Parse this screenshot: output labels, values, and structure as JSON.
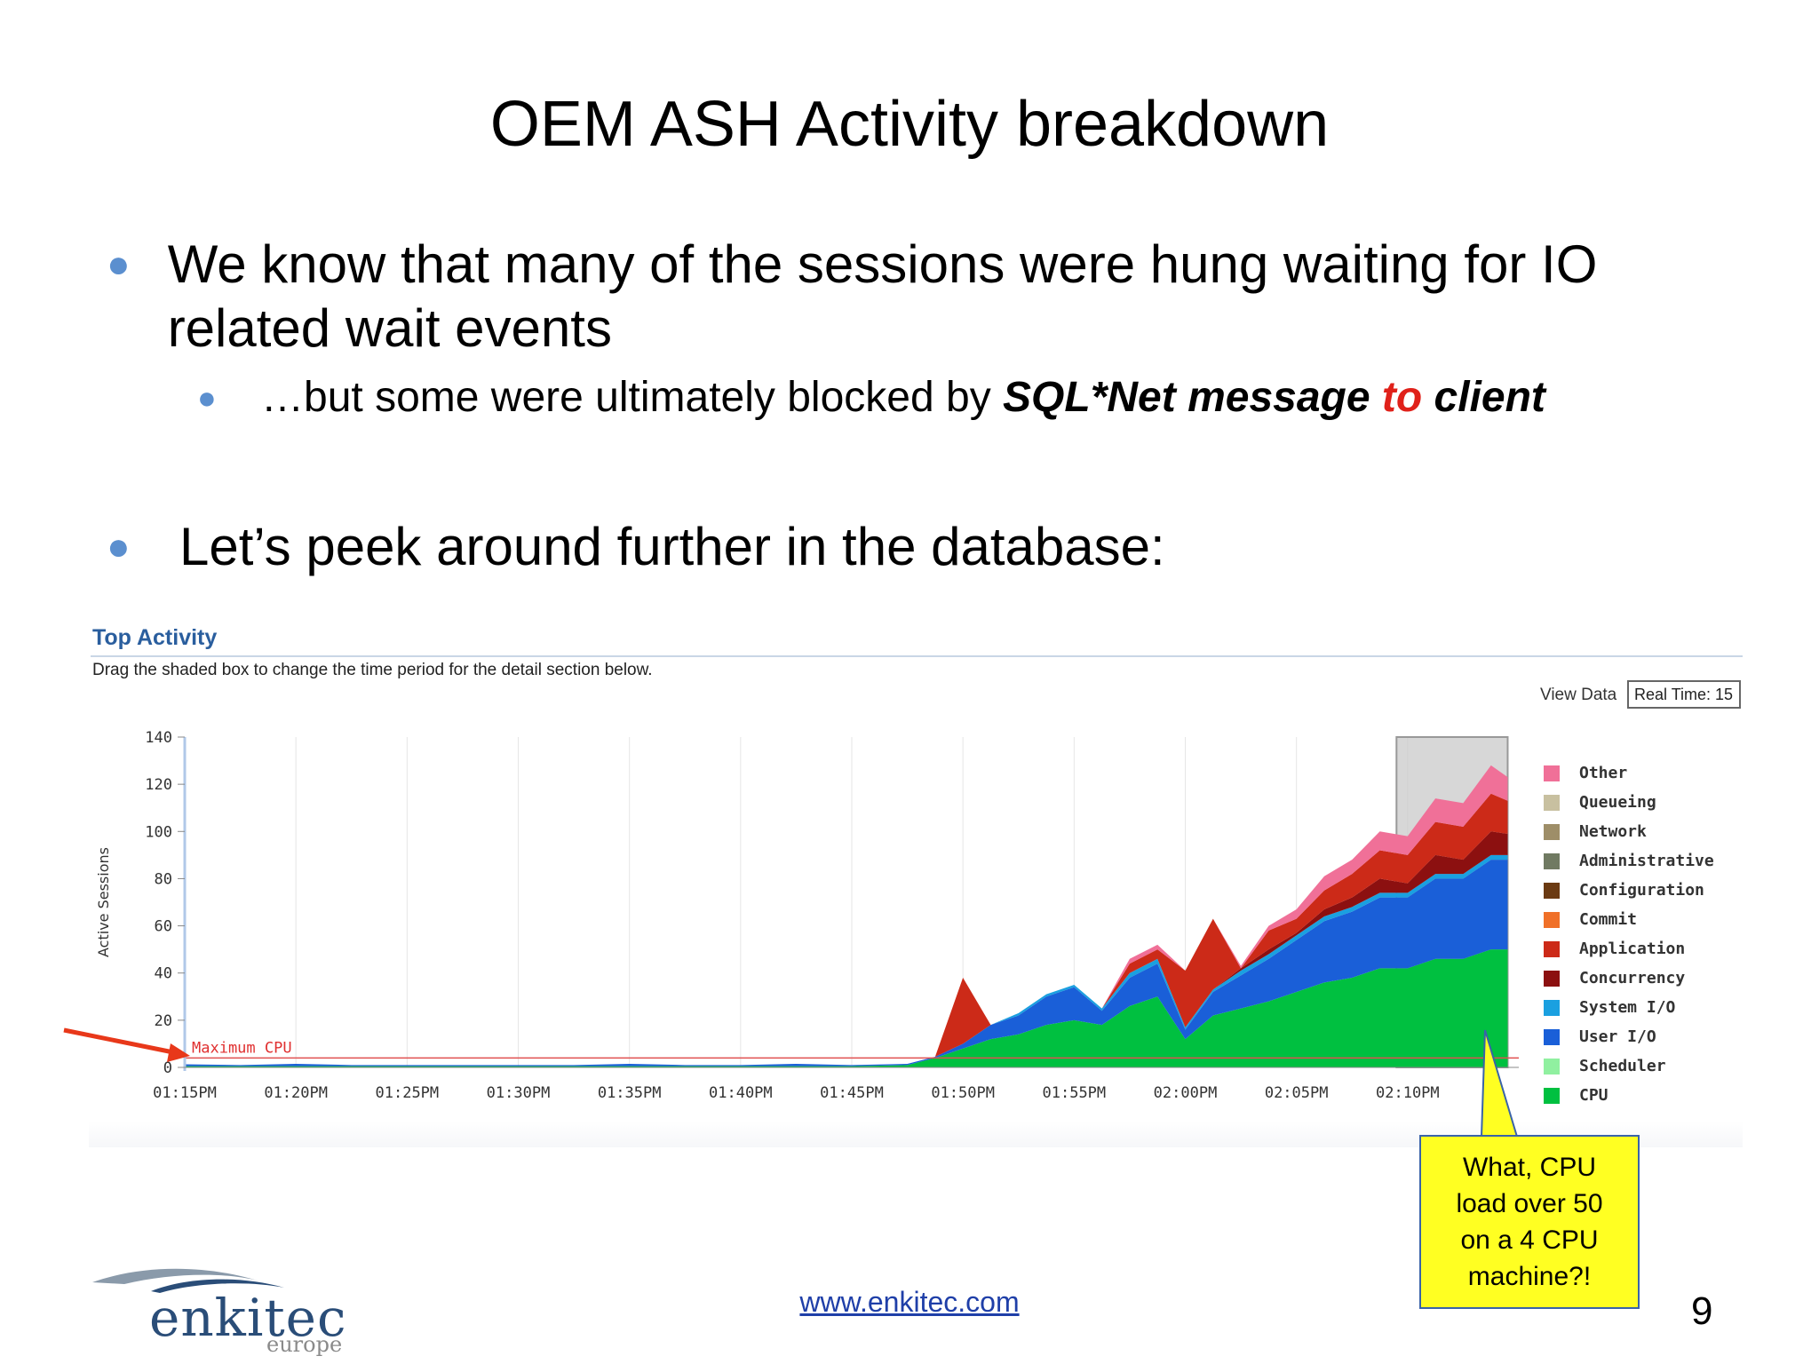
{
  "slide": {
    "title": "OEM ASH Activity breakdown",
    "bullet1": "We know that many of the sessions were hung waiting for IO related wait events",
    "bullet2_prefix": "…but some were ultimately blocked by ",
    "bullet2_em1": "SQL*Net message ",
    "bullet2_em2": "to",
    "bullet2_em3": " client",
    "bullet3": "Let’s peek around further in the database:",
    "callout": "What, CPU\nload over 50\non a 4 CPU\nmachine?!",
    "footer_link": "www.enkitec.com",
    "page_number": "9",
    "logo_word": "enkitec",
    "logo_sub": "europe"
  },
  "panel": {
    "title": "Top Activity",
    "subtitle": "Drag the shaded box to change the time period for the detail section below.",
    "view_data_label": "View Data",
    "view_data_value": "Real Time: 15"
  },
  "colors": {
    "accent_blue": "#2a5e9e",
    "bullet": "#5b8fcf",
    "highlight_red": "#e0211a",
    "callout_yellow": "#ffff22",
    "arrow": "#e8381a"
  },
  "chart_data": {
    "type": "area",
    "stacked": true,
    "ylabel": "Active Sessions",
    "ylim": [
      0,
      140
    ],
    "yticks": [
      0,
      20,
      40,
      60,
      80,
      100,
      120,
      140
    ],
    "xlim": [
      0,
      24
    ],
    "xticks": [
      {
        "x": 0,
        "label": "01:15PM"
      },
      {
        "x": 2,
        "label": "01:20PM"
      },
      {
        "x": 4,
        "label": "01:25PM"
      },
      {
        "x": 6,
        "label": "01:30PM"
      },
      {
        "x": 8,
        "label": "01:35PM"
      },
      {
        "x": 10,
        "label": "01:40PM"
      },
      {
        "x": 12,
        "label": "01:45PM"
      },
      {
        "x": 14,
        "label": "01:50PM"
      },
      {
        "x": 16,
        "label": "01:55PM"
      },
      {
        "x": 18,
        "label": "02:00PM"
      },
      {
        "x": 20,
        "label": "02:05PM"
      },
      {
        "x": 22,
        "label": "02:10PM"
      }
    ],
    "max_cpu_label": "Maximum CPU",
    "max_cpu_value": 4,
    "selection_range": [
      21.8,
      23.8
    ],
    "x": [
      0,
      1,
      2,
      3,
      4,
      5,
      6,
      7,
      8,
      9,
      10,
      11,
      12,
      13,
      13.5,
      14,
      14.5,
      15,
      15.5,
      16,
      16.5,
      17,
      17.5,
      18,
      18.5,
      19,
      19.5,
      20,
      20.5,
      21,
      21.5,
      22,
      22.5,
      23,
      23.5,
      23.8
    ],
    "series": [
      {
        "name": "CPU",
        "color": "#00c040",
        "values": [
          0.5,
          0.5,
          0.5,
          0.5,
          0.5,
          0.5,
          0.5,
          0.5,
          0.5,
          0.5,
          0.5,
          0.5,
          0.5,
          1,
          4,
          8,
          12,
          14,
          18,
          20,
          18,
          26,
          30,
          12,
          22,
          25,
          28,
          32,
          36,
          38,
          42,
          42,
          46,
          46,
          50,
          50
        ]
      },
      {
        "name": "Scheduler",
        "color": "#90f0a0",
        "values": [
          0,
          0,
          0,
          0,
          0,
          0,
          0,
          0,
          0,
          0,
          0,
          0,
          0,
          0,
          0,
          0,
          0,
          0,
          0,
          0,
          0,
          0,
          0,
          0,
          0,
          0,
          0,
          0,
          0,
          0,
          0,
          0,
          0,
          0,
          0,
          0
        ]
      },
      {
        "name": "User I/O",
        "color": "#1a5fd8",
        "values": [
          0.8,
          0.5,
          1,
          0.5,
          0.5,
          0.5,
          0.5,
          0.5,
          1,
          0.5,
          0.5,
          1,
          0.5,
          0.5,
          0.5,
          2,
          6,
          8,
          12,
          14,
          6,
          12,
          14,
          4,
          10,
          14,
          18,
          22,
          26,
          28,
          30,
          30,
          34,
          34,
          38,
          38
        ]
      },
      {
        "name": "System I/O",
        "color": "#1aa0e0",
        "values": [
          0,
          0,
          0,
          0,
          0,
          0,
          0,
          0,
          0,
          0,
          0,
          0,
          0,
          0,
          0,
          0,
          0,
          1,
          1,
          1,
          1,
          2,
          2,
          1,
          1,
          2,
          2,
          2,
          2,
          2,
          2,
          2,
          2,
          2,
          2,
          2
        ]
      },
      {
        "name": "Concurrency",
        "color": "#8c1010",
        "values": [
          0,
          0,
          0,
          0,
          0,
          0,
          0,
          0,
          0,
          0,
          0,
          0,
          0,
          0,
          0,
          0,
          0,
          0,
          0,
          0,
          0,
          0,
          0,
          0,
          0,
          1,
          2,
          1,
          3,
          4,
          6,
          4,
          8,
          6,
          10,
          9
        ]
      },
      {
        "name": "Application",
        "color": "#cc2a18",
        "values": [
          0,
          0,
          0,
          0,
          0,
          0,
          0,
          0,
          0,
          0,
          0,
          0,
          0,
          0,
          0,
          28,
          0,
          0,
          0,
          0,
          0,
          4,
          4,
          24,
          30,
          0,
          8,
          6,
          8,
          10,
          12,
          12,
          14,
          14,
          16,
          14
        ]
      },
      {
        "name": "Commit",
        "color": "#f07028",
        "values": [
          0,
          0,
          0,
          0,
          0,
          0,
          0,
          0,
          0,
          0,
          0,
          0,
          0,
          0,
          0,
          0,
          0,
          0,
          0,
          0,
          0,
          0,
          0,
          0,
          0,
          0,
          0,
          0,
          0,
          0,
          0,
          0,
          0,
          0,
          0,
          0
        ]
      },
      {
        "name": "Configuration",
        "color": "#6b3a12",
        "values": [
          0,
          0,
          0,
          0,
          0,
          0,
          0,
          0,
          0,
          0,
          0,
          0,
          0,
          0,
          0,
          0,
          0,
          0,
          0,
          0,
          0,
          0,
          0,
          0,
          0,
          0,
          0,
          0,
          0,
          0,
          0,
          0,
          0,
          0,
          0,
          0
        ]
      },
      {
        "name": "Administrative",
        "color": "#707a62",
        "values": [
          0,
          0,
          0,
          0,
          0,
          0,
          0,
          0,
          0,
          0,
          0,
          0,
          0,
          0,
          0,
          0,
          0,
          0,
          0,
          0,
          0,
          0,
          0,
          0,
          0,
          0,
          0,
          0,
          0,
          0,
          0,
          0,
          0,
          0,
          0,
          0
        ]
      },
      {
        "name": "Network",
        "color": "#9e8e68",
        "values": [
          0,
          0,
          0,
          0,
          0,
          0,
          0,
          0,
          0,
          0,
          0,
          0,
          0,
          0,
          0,
          0,
          0,
          0,
          0,
          0,
          0,
          0,
          0,
          0,
          0,
          0,
          0,
          0,
          0,
          0,
          0,
          0,
          0,
          0,
          0,
          0
        ]
      },
      {
        "name": "Queueing",
        "color": "#c8c0a0",
        "values": [
          0,
          0,
          0,
          0,
          0,
          0,
          0,
          0,
          0,
          0,
          0,
          0,
          0,
          0,
          0,
          0,
          0,
          0,
          0,
          0,
          0,
          0,
          0,
          0,
          0,
          0,
          0,
          0,
          0,
          0,
          0,
          0,
          0,
          0,
          0,
          0
        ]
      },
      {
        "name": "Other",
        "color": "#f07098",
        "values": [
          0,
          0,
          0,
          0,
          0,
          0,
          0,
          0,
          0,
          0,
          0,
          0,
          0,
          0,
          0,
          0,
          0,
          0,
          0,
          0,
          0,
          2,
          2,
          0,
          0,
          1,
          2,
          4,
          6,
          6,
          8,
          8,
          10,
          10,
          12,
          10
        ]
      }
    ]
  }
}
